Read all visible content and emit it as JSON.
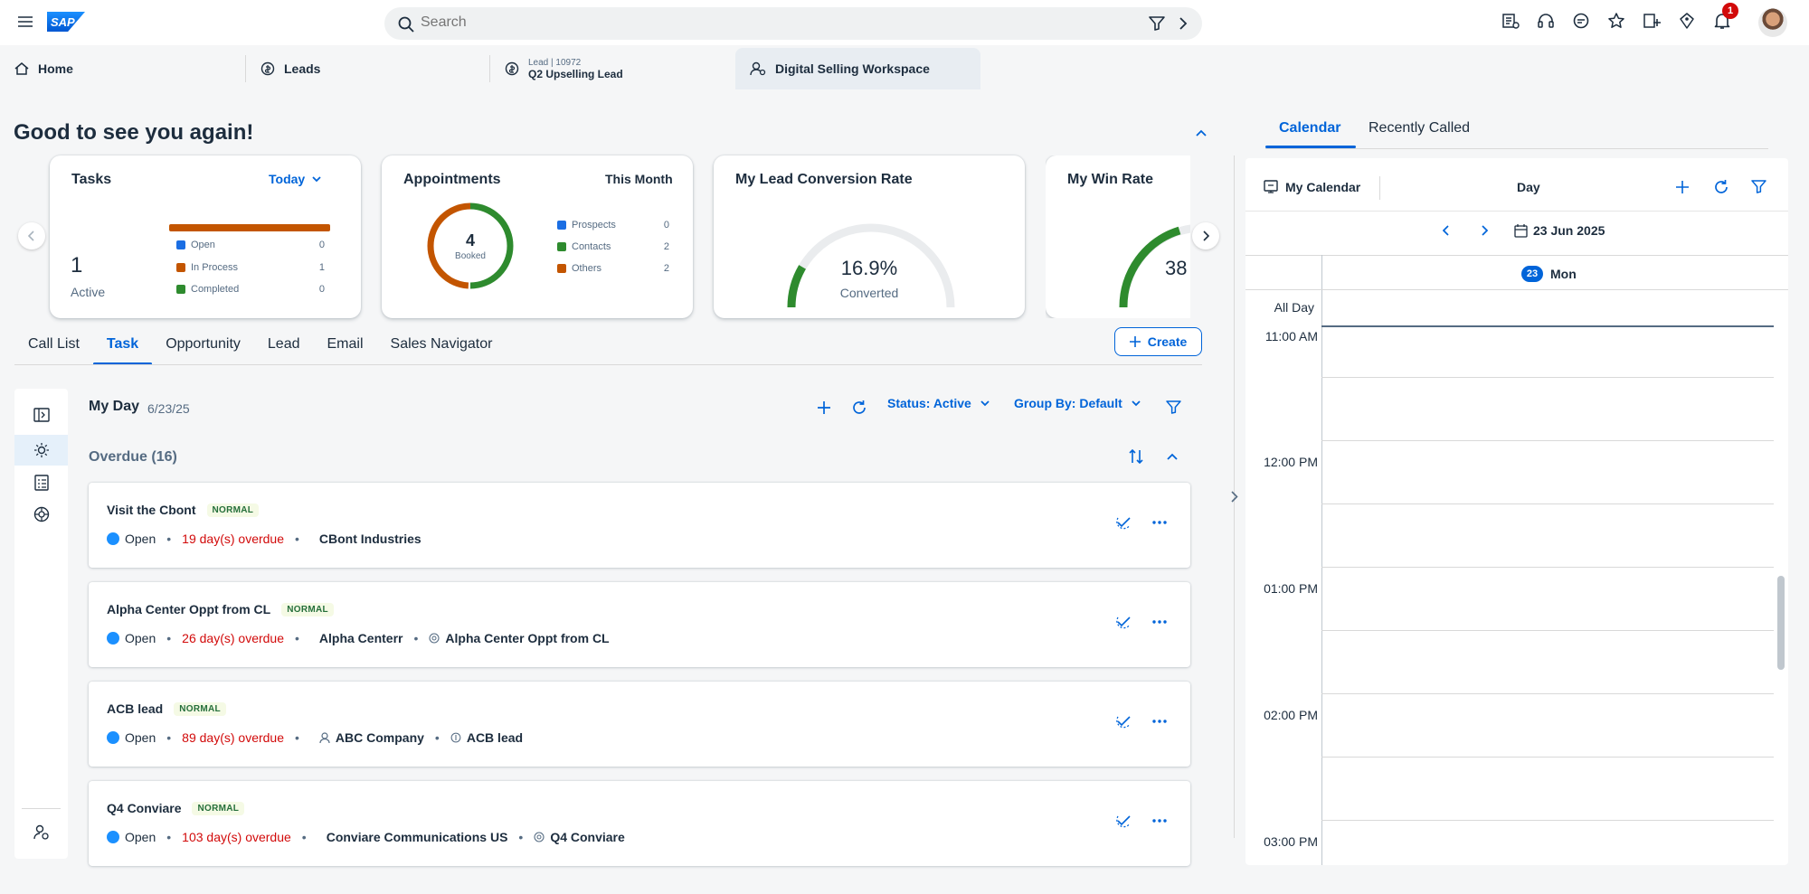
{
  "shell": {
    "search_placeholder": "Search",
    "notification_count": "1",
    "logo_text": "SAP"
  },
  "tabs": [
    {
      "label": "Home"
    },
    {
      "label": "Leads"
    },
    {
      "sub": "Lead | 10972",
      "label": "Q2 Upselling Lead"
    },
    {
      "label": "Digital Selling Workspace"
    }
  ],
  "greeting": "Good to see you again!",
  "cards": {
    "tasks": {
      "title": "Tasks",
      "period": "Today",
      "count": "1",
      "count_label": "Active",
      "legend": [
        {
          "label": "Open",
          "value": "0",
          "color": "#1b6ee3"
        },
        {
          "label": "In Process",
          "value": "1",
          "color": "#c35500"
        },
        {
          "label": "Completed",
          "value": "0",
          "color": "#2e8b2e"
        }
      ]
    },
    "appointments": {
      "title": "Appointments",
      "period": "This Month",
      "count": "4",
      "count_label": "Booked",
      "legend": [
        {
          "label": "Prospects",
          "value": "0",
          "color": "#1b6ee3"
        },
        {
          "label": "Contacts",
          "value": "2",
          "color": "#2e8b2e"
        },
        {
          "label": "Others",
          "value": "2",
          "color": "#c35500"
        }
      ]
    },
    "conversion": {
      "title": "My Lead Conversion Rate",
      "value": "16.9%",
      "label": "Converted",
      "fraction": 0.169
    },
    "win": {
      "title": "My Win Rate",
      "value": "38"
    }
  },
  "page_tabs": [
    "Call List",
    "Task",
    "Opportunity",
    "Lead",
    "Email",
    "Sales Navigator"
  ],
  "create_label": "Create",
  "myday": {
    "title": "My Day",
    "date": "6/23/25",
    "status_label": "Status: Active",
    "group_label": "Group By: Default"
  },
  "overdue_label": "Overdue (16)",
  "tasks": [
    {
      "title": "Visit the Cbont",
      "priority": "NORMAL",
      "status": "Open",
      "overdue": "19 day(s) overdue",
      "account": "CBont Industries",
      "related": ""
    },
    {
      "title": "Alpha Center Oppt from CL",
      "priority": "NORMAL",
      "status": "Open",
      "overdue": "26 day(s) overdue",
      "account": "Alpha Centerr",
      "related": "Alpha Center Oppt from CL"
    },
    {
      "title": "ACB lead",
      "priority": "NORMAL",
      "status": "Open",
      "overdue": "89 day(s) overdue",
      "account": "ABC Company",
      "related": "ACB lead"
    },
    {
      "title": "Q4 Conviare",
      "priority": "NORMAL",
      "status": "Open",
      "overdue": "103 day(s) overdue",
      "account": "Conviare Communications US",
      "related": "Q4 Conviare"
    }
  ],
  "right": {
    "tabs": [
      "Calendar",
      "Recently Called"
    ],
    "my_calendar": "My Calendar",
    "view": "Day",
    "date": "23 Jun 2025",
    "day_num": "23",
    "day_name": "Mon",
    "all_day": "All Day",
    "hours": [
      "11:00 AM",
      "12:00 PM",
      "01:00 PM",
      "02:00 PM",
      "03:00 PM"
    ]
  }
}
